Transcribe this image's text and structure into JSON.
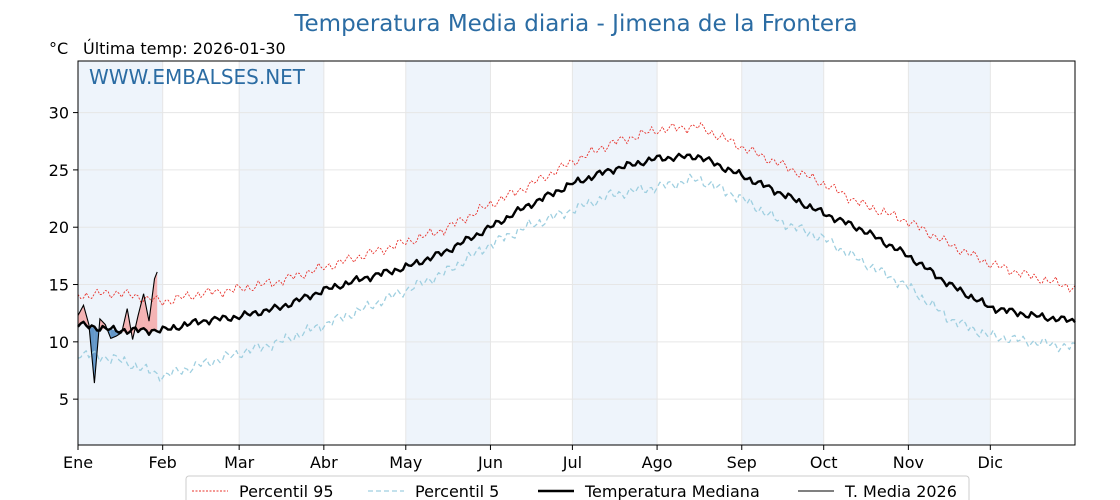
{
  "header": {
    "title": "Temperatura Media diaria - Jimena de la Frontera",
    "unit": "°C",
    "last_temp": "Última temp: 2026-01-30",
    "watermark": "WWW.EMBALSES.NET"
  },
  "colors": {
    "title": "#2b6ca3",
    "p95": "#e8312a",
    "p5": "#9fcfe0",
    "median": "#000000",
    "year": "#000000",
    "above_fill": "#f4a7a7",
    "below_fill": "#4a86c0",
    "month_band": "#eef4fb"
  },
  "chart_data": {
    "type": "line",
    "title": "Temperatura Media diaria - Jimena de la Frontera",
    "ylabel": "°C",
    "ylim": [
      1,
      34.5
    ],
    "xlim": [
      1,
      366
    ],
    "grid": true,
    "legend_position": "bottom-center",
    "month_ticks": [
      {
        "label": "Ene",
        "day": 1
      },
      {
        "label": "Feb",
        "day": 32
      },
      {
        "label": "Mar",
        "day": 60
      },
      {
        "label": "Abr",
        "day": 91
      },
      {
        "label": "May",
        "day": 121
      },
      {
        "label": "Jun",
        "day": 152
      },
      {
        "label": "Jul",
        "day": 182
      },
      {
        "label": "Ago",
        "day": 213
      },
      {
        "label": "Sep",
        "day": 244
      },
      {
        "label": "Oct",
        "day": 274
      },
      {
        "label": "Nov",
        "day": 305
      },
      {
        "label": "Dic",
        "day": 335
      }
    ],
    "y_ticks": [
      5,
      10,
      15,
      20,
      25,
      30
    ],
    "series_anchor_day": [
      1,
      15,
      32,
      46,
      60,
      75,
      91,
      105,
      121,
      135,
      152,
      165,
      182,
      196,
      213,
      228,
      244,
      258,
      274,
      288,
      305,
      320,
      335,
      350,
      366
    ],
    "series": [
      {
        "name": "Percentil 95",
        "key": "p95",
        "values": [
          14.0,
          14.3,
          13.5,
          14.2,
          14.6,
          15.3,
          16.5,
          17.5,
          18.7,
          19.8,
          22.0,
          23.5,
          25.7,
          27.3,
          28.5,
          28.8,
          27.0,
          25.5,
          23.8,
          22.0,
          20.5,
          18.5,
          16.8,
          15.7,
          14.7
        ]
      },
      {
        "name": "Percentil 5",
        "key": "p5",
        "values": [
          9.0,
          8.5,
          7.0,
          8.0,
          9.0,
          10.0,
          11.5,
          12.8,
          14.5,
          16.0,
          18.5,
          20.0,
          21.5,
          22.8,
          23.5,
          24.2,
          22.5,
          20.5,
          19.0,
          17.0,
          14.8,
          12.0,
          10.5,
          10.0,
          9.5
        ]
      },
      {
        "name": "Temperatura Mediana",
        "key": "median",
        "values": [
          11.5,
          11.0,
          11.0,
          11.8,
          12.2,
          13.0,
          14.5,
          15.5,
          16.5,
          17.8,
          20.0,
          21.8,
          23.8,
          25.0,
          26.0,
          26.2,
          24.5,
          23.0,
          21.2,
          19.8,
          17.5,
          15.0,
          13.0,
          12.3,
          11.8
        ]
      },
      {
        "name": "T. Media 2026",
        "key": "year",
        "days": [
          1,
          3,
          5,
          7,
          9,
          11,
          13,
          15,
          17,
          19,
          21,
          23,
          25,
          27,
          29,
          30
        ],
        "values": [
          12.3,
          13.2,
          11.5,
          6.4,
          12.0,
          11.5,
          10.3,
          10.5,
          10.8,
          12.9,
          10.2,
          12.3,
          14.2,
          11.8,
          15.5,
          16.1
        ]
      }
    ]
  },
  "legend": [
    {
      "label": "Percentil 95",
      "key": "p95"
    },
    {
      "label": "Percentil 5",
      "key": "p5"
    },
    {
      "label": "Temperatura Mediana",
      "key": "median"
    },
    {
      "label": "T. Media 2026",
      "key": "year"
    }
  ]
}
